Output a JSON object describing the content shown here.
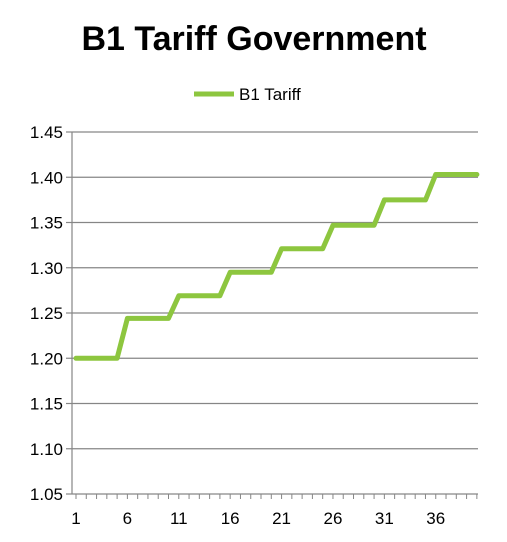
{
  "chart_data": {
    "type": "line",
    "title": "B1 Tariff  Government",
    "xlabel": "",
    "ylabel": "",
    "legend_position": "top",
    "grid": true,
    "ylim": [
      1.05,
      1.45
    ],
    "xlim": [
      1,
      40
    ],
    "y_ticks": [
      "1.05",
      "1.10",
      "1.15",
      "1.20",
      "1.25",
      "1.30",
      "1.35",
      "1.40",
      "1.45"
    ],
    "x_ticks": [
      "1",
      "6",
      "11",
      "16",
      "21",
      "26",
      "31",
      "36"
    ],
    "series": [
      {
        "name": "B1 Tariff",
        "color": "#8DC63F",
        "x": [
          1,
          2,
          3,
          4,
          5,
          6,
          7,
          8,
          9,
          10,
          11,
          12,
          13,
          14,
          15,
          16,
          17,
          18,
          19,
          20,
          21,
          22,
          23,
          24,
          25,
          26,
          27,
          28,
          29,
          30,
          31,
          32,
          33,
          34,
          35,
          36,
          37,
          38,
          39,
          40
        ],
        "y": [
          1.2,
          1.2,
          1.2,
          1.2,
          1.2,
          1.244,
          1.244,
          1.244,
          1.244,
          1.244,
          1.269,
          1.269,
          1.269,
          1.269,
          1.269,
          1.295,
          1.295,
          1.295,
          1.295,
          1.295,
          1.321,
          1.321,
          1.321,
          1.321,
          1.321,
          1.347,
          1.347,
          1.347,
          1.347,
          1.347,
          1.375,
          1.375,
          1.375,
          1.375,
          1.375,
          1.403,
          1.403,
          1.403,
          1.403,
          1.403
        ]
      }
    ]
  }
}
